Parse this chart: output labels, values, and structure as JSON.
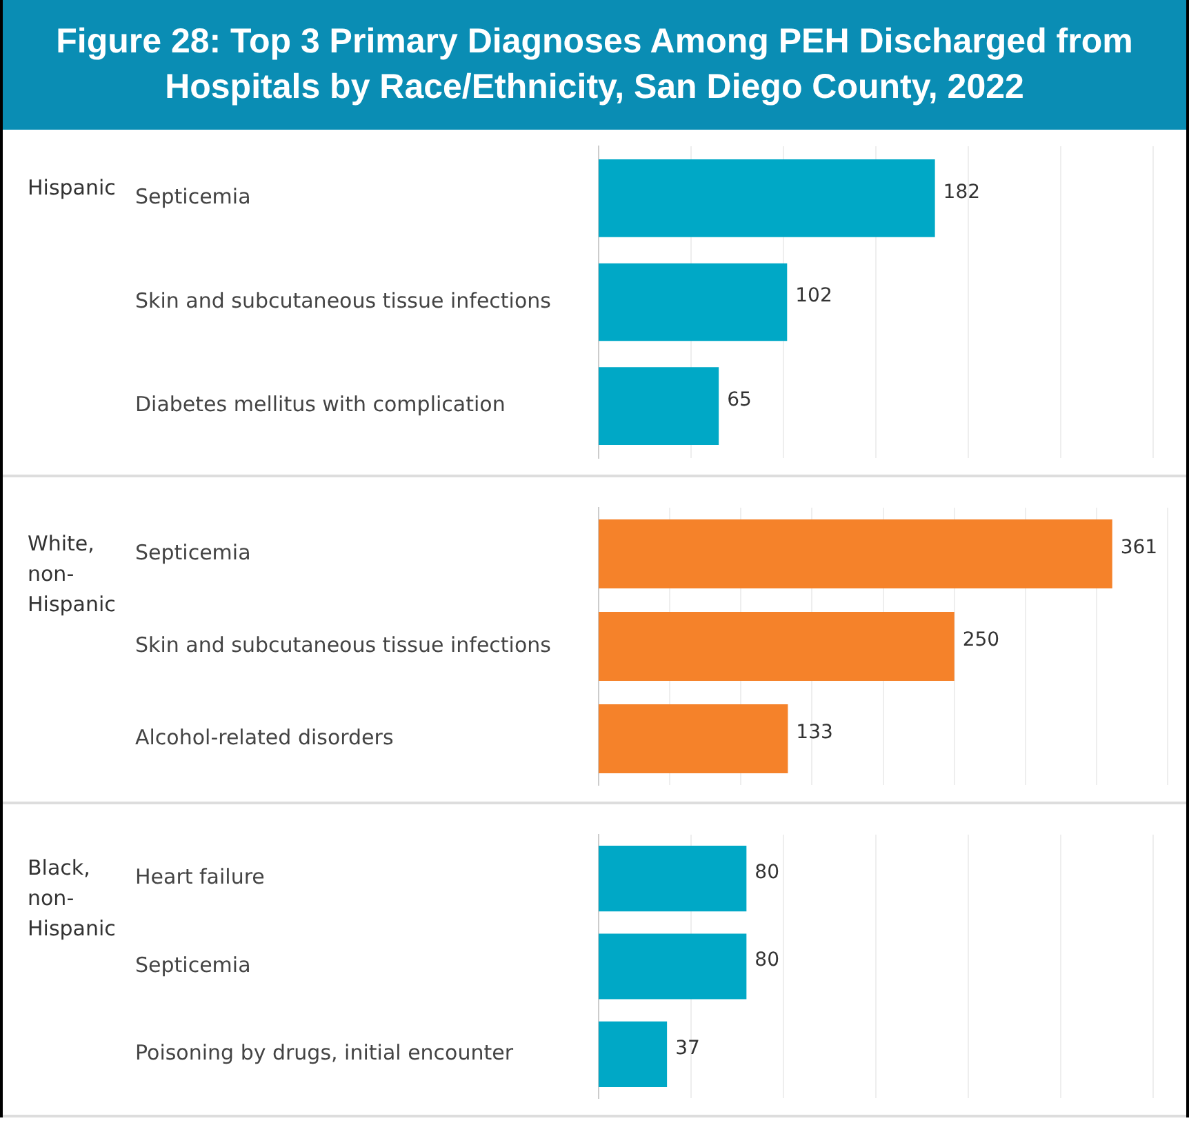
{
  "chart_data": [
    {
      "type": "bar",
      "orientation": "horizontal",
      "title": "Figure 28: Top 3 Primary Diagnoses Among PEH Discharged from Hospitals by Race/Ethnicity, San Diego County, 2022",
      "ylabel": "Hispanic",
      "categories": [
        "Septicemia",
        "Skin and subcutaneous tissue infections",
        "Diabetes mellitus with complication"
      ],
      "values": [
        182,
        102,
        65
      ],
      "color": "#00a8c6",
      "data_labels": true,
      "grid": "x",
      "tick_labels": "y",
      "xlim": [
        0,
        318
      ],
      "xticks": [
        {
          "value": 50,
          "label": null
        },
        {
          "value": 100,
          "label": null
        },
        {
          "value": 150,
          "label": null
        },
        {
          "value": 200,
          "label": null
        },
        {
          "value": 250,
          "label": null
        },
        {
          "value": 300,
          "label": null
        }
      ]
    },
    {
      "type": "bar",
      "orientation": "horizontal",
      "ylabel": "White, non-Hispanic",
      "categories": [
        "Septicemia",
        "Skin and subcutaneous tissue infections",
        "Alcohol-related disorders"
      ],
      "values": [
        361,
        250,
        133
      ],
      "color": "#f5822a",
      "data_labels": true,
      "grid": "x",
      "tick_labels": "y",
      "xlim": [
        0,
        413
      ],
      "xticks": [
        {
          "value": 50,
          "label": null
        },
        {
          "value": 100,
          "label": null
        },
        {
          "value": 150,
          "label": null
        },
        {
          "value": 200,
          "label": null
        },
        {
          "value": 250,
          "label": null
        },
        {
          "value": 300,
          "label": null
        },
        {
          "value": 350,
          "label": null
        },
        {
          "value": 400,
          "label": null
        }
      ]
    },
    {
      "type": "bar",
      "orientation": "horizontal",
      "ylabel": "Black, non-Hispanic",
      "categories": [
        "Heart failure",
        "Septicemia",
        "Poisoning by drugs, initial encounter"
      ],
      "values": [
        80,
        80,
        37
      ],
      "color": "#00a8c6",
      "data_labels": true,
      "grid": "x",
      "tick_labels": "y",
      "xlim": [
        0,
        318
      ],
      "xticks": [
        {
          "value": 50,
          "label": null
        },
        {
          "value": 100,
          "label": null
        },
        {
          "value": 150,
          "label": null
        },
        {
          "value": 200,
          "label": null
        },
        {
          "value": 250,
          "label": null
        },
        {
          "value": 300,
          "label": null
        }
      ]
    }
  ]
}
